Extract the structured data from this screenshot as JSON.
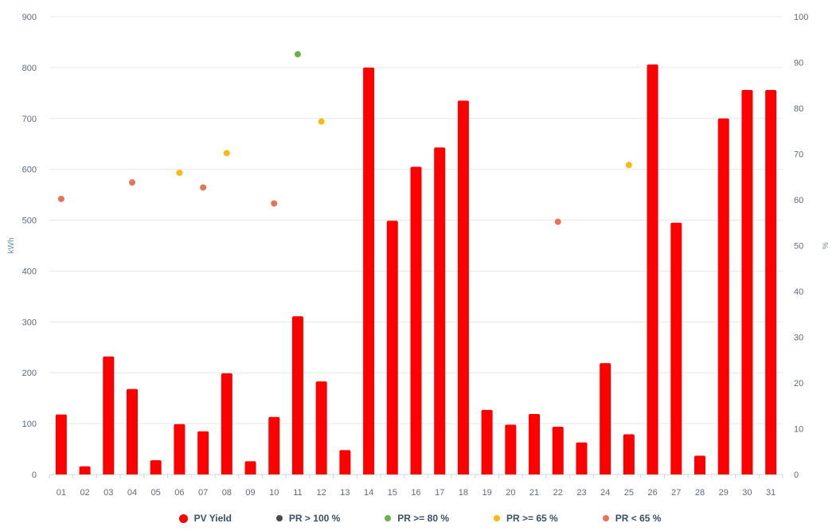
{
  "chart_data": {
    "type": "bar",
    "categories": [
      "01",
      "02",
      "03",
      "04",
      "05",
      "06",
      "07",
      "08",
      "09",
      "10",
      "11",
      "12",
      "13",
      "14",
      "15",
      "16",
      "17",
      "18",
      "19",
      "20",
      "21",
      "22",
      "23",
      "24",
      "25",
      "26",
      "27",
      "28",
      "29",
      "30",
      "31"
    ],
    "series": [
      {
        "name": "PV Yield",
        "type": "bar",
        "axis": "left",
        "color": "#ff0000",
        "values": [
          118,
          16,
          232,
          168,
          28,
          99,
          85,
          199,
          26,
          113,
          311,
          183,
          48,
          800,
          499,
          605,
          643,
          735,
          127,
          98,
          119,
          94,
          63,
          219,
          79,
          806,
          495,
          37,
          700,
          756,
          756
        ]
      },
      {
        "name": "PR > 100 %",
        "type": "scatter",
        "axis": "right",
        "color": "#4a4a4a",
        "points": []
      },
      {
        "name": "PR >= 80 %",
        "type": "scatter",
        "axis": "right",
        "color": "#6ab04c",
        "points": [
          {
            "x": "11",
            "y": 91.8
          }
        ]
      },
      {
        "name": "PR >= 65 %",
        "type": "scatter",
        "axis": "right",
        "color": "#f9b916",
        "points": [
          {
            "x": "06",
            "y": 65.9
          },
          {
            "x": "08",
            "y": 70.2
          },
          {
            "x": "12",
            "y": 77.1
          },
          {
            "x": "25",
            "y": 67.6
          }
        ]
      },
      {
        "name": "PR < 65 %",
        "type": "scatter",
        "axis": "right",
        "color": "#e8735a",
        "points": [
          {
            "x": "01",
            "y": 60.2
          },
          {
            "x": "04",
            "y": 63.8
          },
          {
            "x": "07",
            "y": 62.7
          },
          {
            "x": "10",
            "y": 59.2
          },
          {
            "x": "22",
            "y": 55.2
          }
        ]
      }
    ],
    "left_axis": {
      "label": "kWh",
      "min": 0,
      "max": 900,
      "ticks": [
        0,
        100,
        200,
        300,
        400,
        500,
        600,
        700,
        800,
        900
      ]
    },
    "right_axis": {
      "label": "%",
      "min": 0,
      "max": 100,
      "ticks": [
        0,
        10,
        20,
        30,
        40,
        50,
        60,
        70,
        80,
        90,
        100
      ]
    },
    "grid": true,
    "legend_position": "bottom-center"
  }
}
